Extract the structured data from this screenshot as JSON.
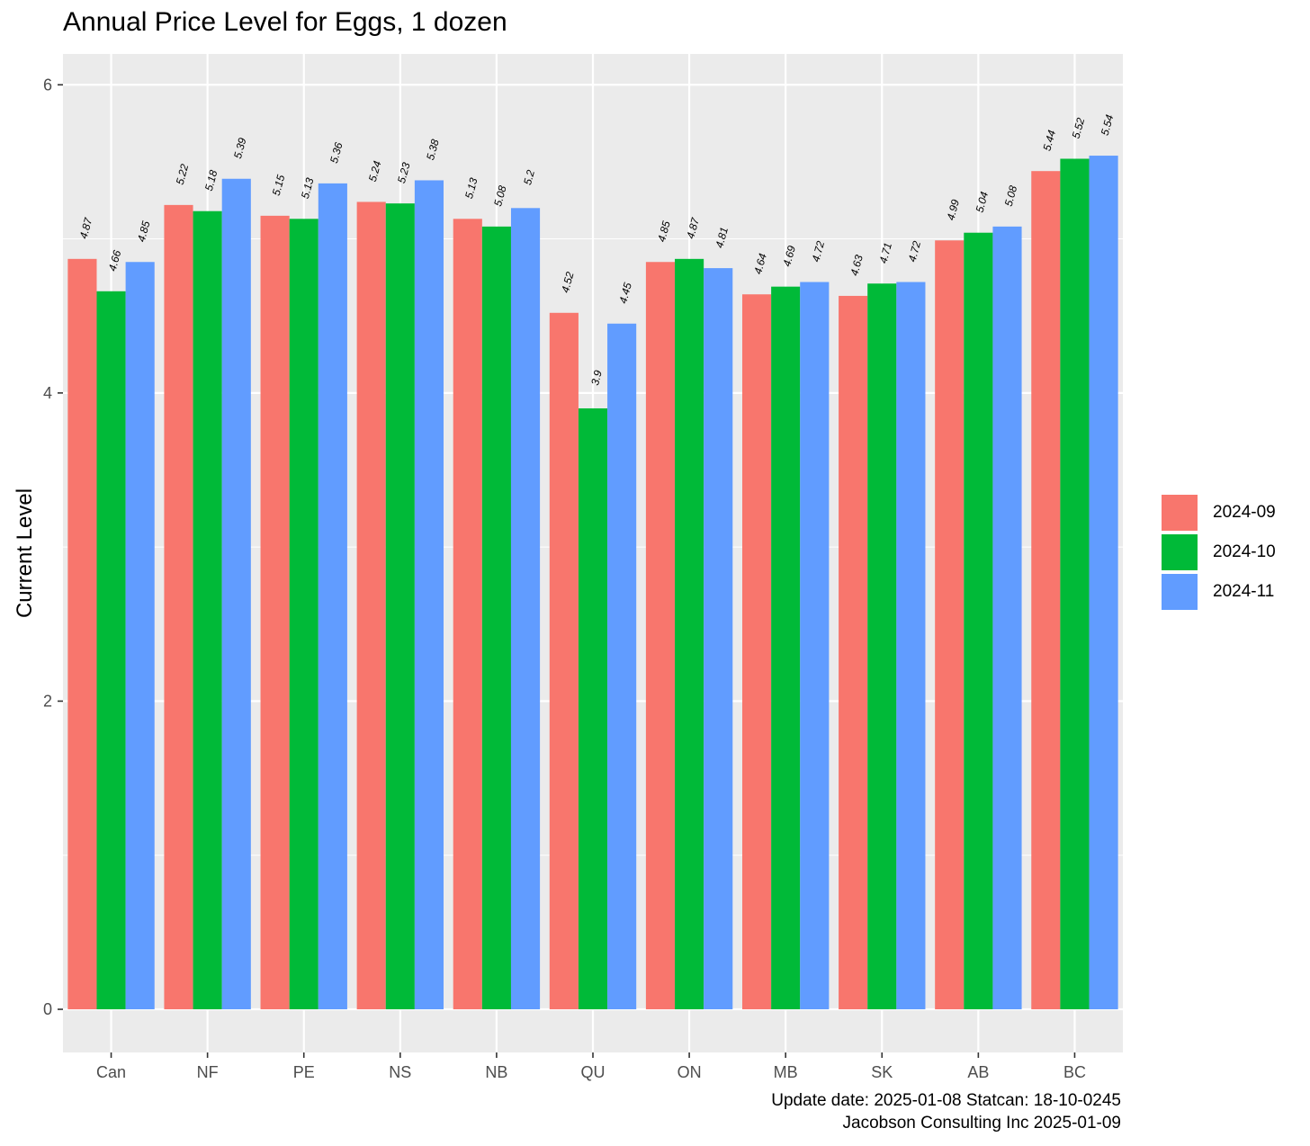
{
  "chart_data": {
    "type": "bar",
    "title": "Annual Price Level for Eggs, 1 dozen",
    "xlabel": "",
    "ylabel": "Current Level",
    "ylim": [
      -0.28,
      6.2
    ],
    "yticks": [
      0,
      2,
      4,
      6
    ],
    "categories": [
      "Can",
      "NF",
      "PE",
      "NS",
      "NB",
      "QU",
      "ON",
      "MB",
      "SK",
      "AB",
      "BC"
    ],
    "series": [
      {
        "name": "2024-09",
        "color": "#F8766D",
        "values": [
          4.87,
          5.22,
          5.15,
          5.24,
          5.13,
          4.52,
          4.85,
          4.64,
          4.63,
          4.99,
          5.44
        ],
        "labels": [
          "4.87",
          "5.22",
          "5.15",
          "5.24",
          "5.13",
          "4.52",
          "4.85",
          "4.64",
          "4.63",
          "4.99",
          "5.44"
        ]
      },
      {
        "name": "2024-10",
        "color": "#00BA38",
        "values": [
          4.66,
          5.18,
          5.13,
          5.23,
          5.08,
          3.9,
          4.87,
          4.69,
          4.71,
          5.04,
          5.52
        ],
        "labels": [
          "4.66",
          "5.18",
          "5.13",
          "5.23",
          "5.08",
          "3.9",
          "4.87",
          "4.69",
          "4.71",
          "5.04",
          "5.52"
        ]
      },
      {
        "name": "2024-11",
        "color": "#619CFF",
        "values": [
          4.85,
          5.39,
          5.36,
          5.38,
          5.2,
          4.45,
          4.81,
          4.72,
          4.72,
          5.08,
          5.54
        ],
        "labels": [
          "4.85",
          "5.39",
          "5.36",
          "5.38",
          "5.2",
          "4.45",
          "4.81",
          "4.72",
          "4.72",
          "5.08",
          "5.54"
        ]
      }
    ],
    "legend_position": "right",
    "grid": true
  },
  "caption": {
    "line1": "Update date: 2025-01-08 Statcan: 18-10-0245 ",
    "line2": "Jacobson Consulting Inc 2025-01-09"
  },
  "colors": {
    "panel_bg": "#EBEBEB",
    "grid": "#FFFFFF",
    "axis_text": "#4D4D4D"
  }
}
